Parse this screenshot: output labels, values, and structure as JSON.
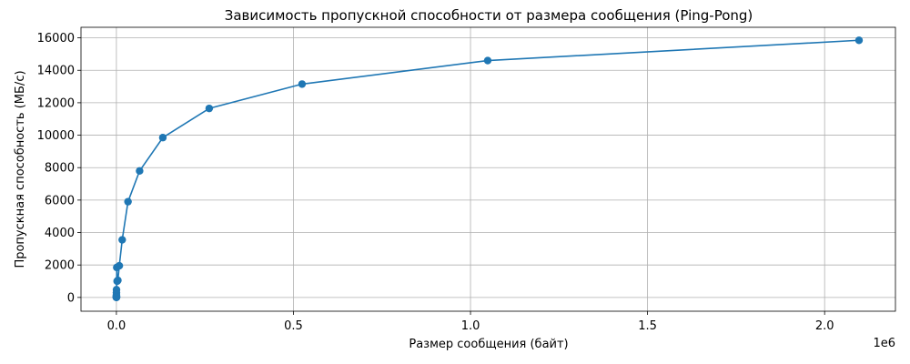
{
  "chart_data": {
    "type": "line",
    "title": "Зависимость пропускной способности от размера сообщения (Ping-Pong)",
    "xlabel": "Размер сообщения (байт)",
    "ylabel": "Пропускная способность (МБ/с)",
    "x_offset_text": "1e6",
    "xlim": [
      -0.1,
      2.2
    ],
    "ylim": [
      -850,
      16650
    ],
    "x_ticks": [
      0.0,
      0.5,
      1.0,
      1.5,
      2.0
    ],
    "x_tick_labels": [
      "0.0",
      "0.5",
      "1.0",
      "1.5",
      "2.0"
    ],
    "y_ticks": [
      0,
      2000,
      4000,
      6000,
      8000,
      10000,
      12000,
      14000,
      16000
    ],
    "y_tick_labels": [
      "0",
      "2000",
      "4000",
      "6000",
      "8000",
      "10000",
      "12000",
      "14000",
      "16000"
    ],
    "grid": true,
    "series": [
      {
        "color": "#1f77b4",
        "marker": "circle",
        "x": [
          1e-06,
          2e-06,
          4e-06,
          8e-06,
          1.6e-05,
          3.2e-05,
          6.4e-05,
          0.000128,
          0.000256,
          0.000512,
          0.001024,
          0.002048,
          0.004096,
          0.008192,
          0.016384,
          0.032768,
          0.065536,
          0.131072,
          0.262144,
          0.524288,
          1.048576,
          2.097152
        ],
        "y": [
          2,
          5,
          10,
          20,
          40,
          80,
          150,
          290,
          480,
          30,
          1850,
          1000,
          1050,
          1950,
          3550,
          5900,
          7800,
          9850,
          11650,
          13150,
          14600,
          15850
        ]
      }
    ]
  }
}
